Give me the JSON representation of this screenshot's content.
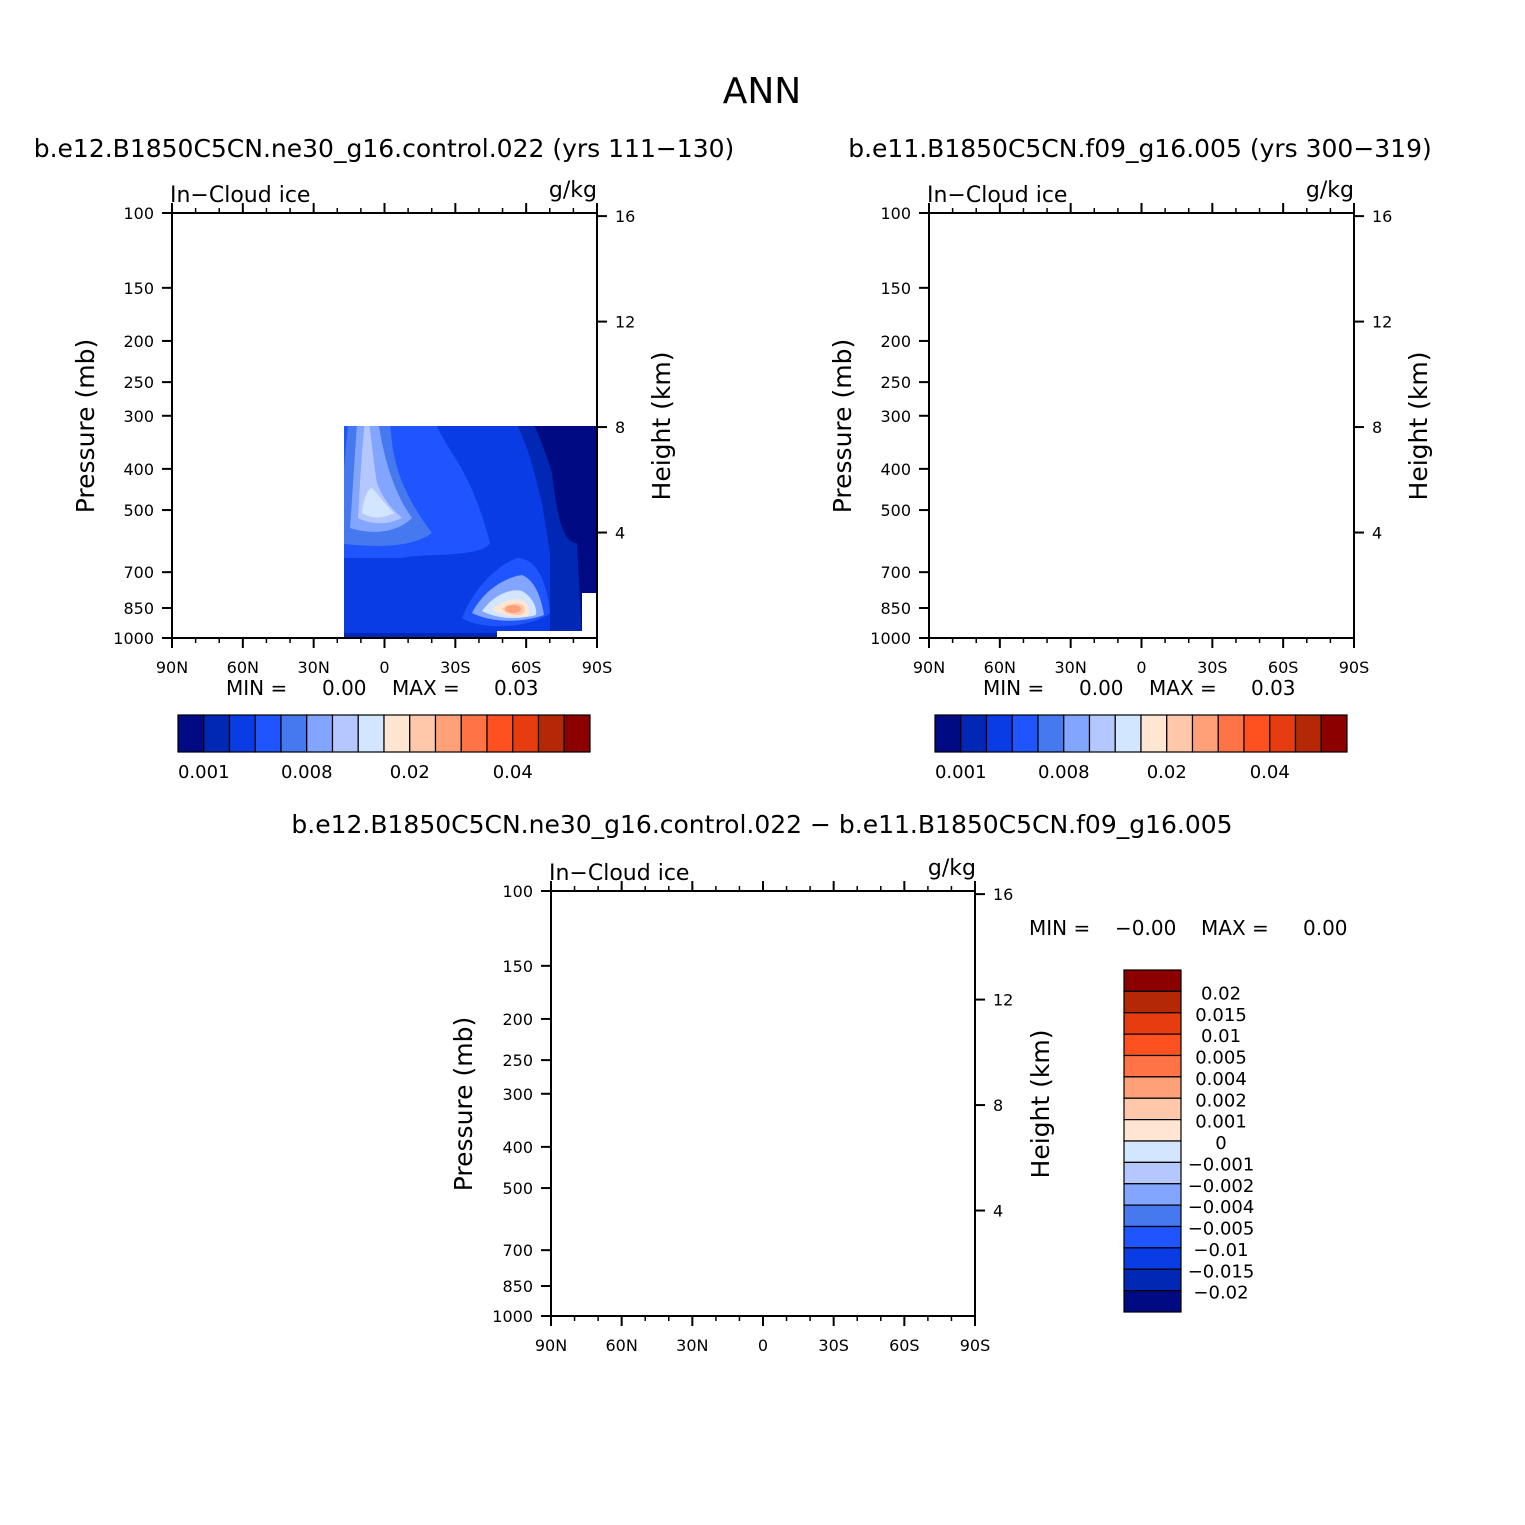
{
  "page_title": "ANN",
  "bottom_title": "b.e12.B1850C5CN.ne30_g16.control.022 − b.e11.B1850C5CN.f09_g16.005",
  "chart_data": [
    {
      "type": "heatmap",
      "title": "b.e12.B1850C5CN.ne30_g16.control.022 (yrs 111−130)",
      "subtitle_left": "In−Cloud ice",
      "subtitle_right": "g/kg",
      "ylabel": "Pressure (mb)",
      "y2label": "Height (km)",
      "x_ticks": [
        "90N",
        "60N",
        "30N",
        "0",
        "30S",
        "60S",
        "90S"
      ],
      "y_ticks": [
        "100",
        "150",
        "200",
        "250",
        "300",
        "400",
        "500",
        "700",
        "850",
        "1000"
      ],
      "y2_ticks": [
        "16",
        "12",
        "8",
        "4"
      ],
      "ylim": [
        1000,
        100
      ],
      "min_text": "MIN =",
      "min_value": "0.00",
      "max_text": "MAX =",
      "max_value": "0.03",
      "colorbar_labels": [
        "0.001",
        "0.008",
        "0.02",
        "0.04"
      ],
      "colorbar_colors": [
        "#000a82",
        "#0028b4",
        "#0a3ce6",
        "#1e55ff",
        "#4678f0",
        "#82a5ff",
        "#b4c8ff",
        "#d2e6ff",
        "#ffe6d2",
        "#ffc8aa",
        "#ffa078",
        "#ff7346",
        "#ff5020",
        "#e63c0f",
        "#b42805",
        "#8c0000"
      ]
    },
    {
      "type": "heatmap",
      "title": "b.e11.B1850C5CN.f09_g16.005 (yrs 300−319)",
      "subtitle_left": "In−Cloud ice",
      "subtitle_right": "g/kg",
      "ylabel": "Pressure (mb)",
      "y2label": "Height (km)",
      "x_ticks": [
        "90N",
        "60N",
        "30N",
        "0",
        "30S",
        "60S",
        "90S"
      ],
      "y_ticks": [
        "100",
        "150",
        "200",
        "250",
        "300",
        "400",
        "500",
        "700",
        "850",
        "1000"
      ],
      "y2_ticks": [
        "16",
        "12",
        "8",
        "4"
      ],
      "ylim": [
        1000,
        100
      ],
      "min_text": "MIN =",
      "min_value": "0.00",
      "max_text": "MAX =",
      "max_value": "0.03",
      "colorbar_labels": [
        "0.001",
        "0.008",
        "0.02",
        "0.04"
      ],
      "colorbar_colors": [
        "#000a82",
        "#0028b4",
        "#0a3ce6",
        "#1e55ff",
        "#4678f0",
        "#82a5ff",
        "#b4c8ff",
        "#d2e6ff",
        "#ffe6d2",
        "#ffc8aa",
        "#ffa078",
        "#ff7346",
        "#ff5020",
        "#e63c0f",
        "#b42805",
        "#8c0000"
      ]
    },
    {
      "type": "heatmap",
      "title": "",
      "subtitle_left": "In−Cloud ice",
      "subtitle_right": "g/kg",
      "ylabel": "Pressure (mb)",
      "y2label": "Height (km)",
      "x_ticks": [
        "90N",
        "60N",
        "30N",
        "0",
        "30S",
        "60S",
        "90S"
      ],
      "y_ticks": [
        "100",
        "150",
        "200",
        "250",
        "300",
        "400",
        "500",
        "700",
        "850",
        "1000"
      ],
      "y2_ticks": [
        "16",
        "12",
        "8",
        "4"
      ],
      "ylim": [
        1000,
        100
      ],
      "min_text": "MIN =",
      "min_value": "−0.00",
      "max_text": "MAX =",
      "max_value": "0.00",
      "colorbar_labels": [
        "0.02",
        "0.015",
        "0.01",
        "0.005",
        "0.004",
        "0.002",
        "0.001",
        "0",
        "−0.001",
        "−0.002",
        "−0.004",
        "−0.005",
        "−0.01",
        "−0.015",
        "−0.02"
      ],
      "colorbar_colors": [
        "#8c0000",
        "#b42805",
        "#e63c0f",
        "#ff5020",
        "#ff7346",
        "#ffa078",
        "#ffc8aa",
        "#ffe6d2",
        "#d2e6ff",
        "#b4c8ff",
        "#82a5ff",
        "#4678f0",
        "#1e55ff",
        "#0a3ce6",
        "#0028b4",
        "#000a82"
      ]
    }
  ]
}
